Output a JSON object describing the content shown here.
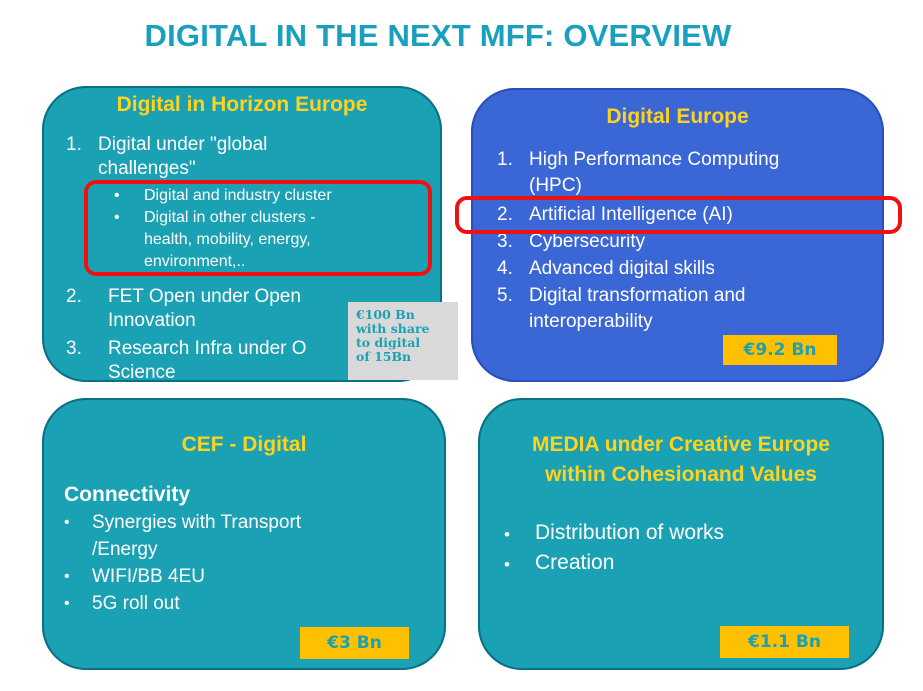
{
  "title": "DIGITAL IN THE NEXT MFF: OVERVIEW",
  "horizon": {
    "heading": "Digital in Horizon Europe",
    "item1_num": "1.",
    "item1_line1": "Digital under \"global",
    "item1_line2": "challenges\"",
    "sub1": "Digital and industry cluster",
    "sub2_line1": "Digital in other clusters -",
    "sub2_line2": "health, mobility, energy,",
    "sub2_line3": "environment,..",
    "item2_num": "2.",
    "item2_line1": "FET Open under Open",
    "item2_line2": "Innovation",
    "item3_num": "3.",
    "item3_line1": "Research Infra under O",
    "item3_line2": "Science",
    "note_line1": "€100 Bn",
    "note_line2": "with share",
    "note_line3": "to digital",
    "note_line4": "of 15Bn"
  },
  "digital_europe": {
    "heading": "Digital Europe",
    "items": [
      {
        "num": "1.",
        "line1": "High Performance Computing",
        "line2": "(HPC)"
      },
      {
        "num": "2.",
        "line1": "Artificial Intelligence (AI)"
      },
      {
        "num": "3.",
        "line1": "Cybersecurity"
      },
      {
        "num": "4.",
        "line1": "Advanced digital skills"
      },
      {
        "num": "5.",
        "line1": "Digital transformation and",
        "line2": "interoperability"
      }
    ],
    "price": "€9.2 Bn"
  },
  "cef": {
    "heading": "CEF - Digital",
    "subheading": "Connectivity",
    "bullet": "•",
    "items": [
      "Synergies with Transport",
      "/Energy",
      "WIFI/BB 4EU",
      "5G roll out"
    ],
    "price": "€3 Bn"
  },
  "media": {
    "heading_line1": "MEDIA under Creative Europe",
    "heading_line2": "within Cohesionand Values",
    "bullet": "•",
    "items": [
      "Distribution of works",
      "Creation"
    ],
    "price": "€1.1 Bn"
  },
  "colors": {
    "title": "#1aa0bf",
    "teal_box": "#1aa1b4",
    "blue_box": "#3a66d6",
    "heading_yellow": "#ffd21f",
    "price_bg": "#ffc000",
    "highlight_red": "#ee1111"
  }
}
